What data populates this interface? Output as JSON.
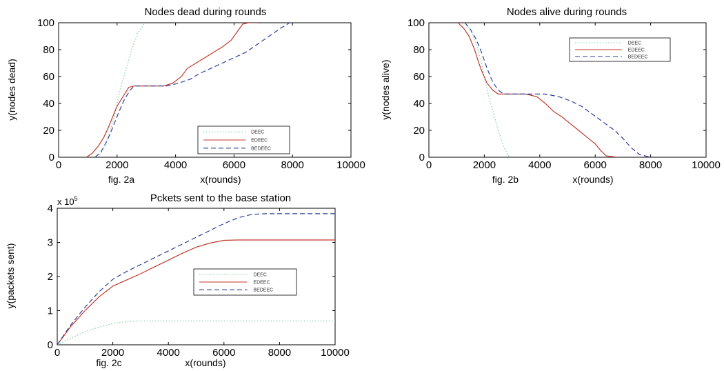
{
  "chart_data": [
    {
      "type": "line",
      "title": "Nodes dead during rounds",
      "ylabel": "y(nodes dead)",
      "fig_label": "fig. 2a",
      "xlabel": "x(rounds)",
      "xlim": [
        0,
        10000
      ],
      "ylim": [
        0,
        100
      ],
      "xticks": [
        0,
        2000,
        4000,
        6000,
        8000,
        10000
      ],
      "yticks": [
        0,
        20,
        40,
        60,
        80,
        100
      ],
      "tick_labels_x": [
        "0",
        "2000",
        "4000",
        "6000",
        "8000",
        "10000"
      ],
      "tick_labels_y": [
        "0",
        "20",
        "40",
        "60",
        "80",
        "100"
      ],
      "legend_placement": "lower-right",
      "series": [
        {
          "name": "DEEC",
          "color": "#8fd4a8",
          "style": "dotted",
          "x": [
            1350,
            1500,
            1700,
            1900,
            2100,
            2300,
            2500,
            2700,
            2950
          ],
          "y": [
            0,
            5,
            15,
            30,
            50,
            65,
            80,
            92,
            100
          ]
        },
        {
          "name": "EDEEC",
          "color": "#c0392b",
          "style": "solid",
          "x": [
            950,
            1150,
            1350,
            1550,
            1700,
            1850,
            2000,
            2200,
            2400,
            2600,
            3000,
            3600,
            3900,
            4200,
            4400,
            4700,
            5000,
            5300,
            5600,
            5900,
            6100,
            6300,
            6500,
            6800
          ],
          "y": [
            0,
            3,
            8,
            15,
            22,
            30,
            38,
            45,
            52,
            53,
            53,
            53,
            55,
            60,
            66,
            70,
            74,
            78,
            82,
            87,
            93,
            99,
            100,
            100
          ]
        },
        {
          "name": "BEDEEC",
          "color": "#2c3e9e",
          "style": "dashed",
          "x": [
            1250,
            1450,
            1650,
            1850,
            2050,
            2250,
            2450,
            2600,
            3000,
            3700,
            4100,
            4500,
            4800,
            5200,
            5600,
            6000,
            6400,
            6800,
            7200,
            7600,
            7900,
            8050
          ],
          "y": [
            0,
            4,
            12,
            22,
            33,
            43,
            50,
            53,
            53,
            53,
            55,
            58,
            62,
            66,
            70,
            74,
            78,
            84,
            90,
            96,
            100,
            100
          ]
        }
      ]
    },
    {
      "type": "line",
      "title": "Nodes alive during rounds",
      "ylabel": "y(nodes alive)",
      "fig_label": "fig. 2b",
      "xlabel": "x(rounds)",
      "xlim": [
        0,
        10000
      ],
      "ylim": [
        0,
        100
      ],
      "xticks": [
        0,
        2000,
        4000,
        6000,
        8000,
        10000
      ],
      "yticks": [
        0,
        20,
        40,
        60,
        80,
        100
      ],
      "tick_labels_x": [
        "0",
        "2000",
        "4000",
        "6000",
        "8000",
        "10000"
      ],
      "tick_labels_y": [
        "0",
        "20",
        "40",
        "60",
        "80",
        "100"
      ],
      "legend_placement": "top-right",
      "series": [
        {
          "name": "DEEC",
          "color": "#8fd4a8",
          "style": "dotted",
          "x": [
            1300,
            1500,
            1700,
            1900,
            2100,
            2300,
            2500,
            2700,
            2900
          ],
          "y": [
            100,
            95,
            85,
            70,
            50,
            35,
            20,
            8,
            0
          ]
        },
        {
          "name": "EDEEC",
          "color": "#c0392b",
          "style": "solid",
          "x": [
            1050,
            1250,
            1450,
            1650,
            1800,
            1950,
            2100,
            2300,
            2500,
            3000,
            3500,
            3900,
            4200,
            4500,
            4800,
            5100,
            5400,
            5700,
            6000,
            6200,
            6400,
            6800
          ],
          "y": [
            100,
            96,
            90,
            80,
            70,
            62,
            55,
            50,
            47,
            47,
            47,
            45,
            40,
            34,
            30,
            25,
            20,
            15,
            10,
            5,
            1,
            0
          ]
        },
        {
          "name": "BEDEEC",
          "color": "#2c3e9e",
          "style": "dashed",
          "x": [
            1300,
            1500,
            1700,
            1900,
            2100,
            2300,
            2500,
            2700,
            3000,
            3600,
            4200,
            4700,
            5100,
            5500,
            5900,
            6300,
            6700,
            7000,
            7300,
            7600,
            8000
          ],
          "y": [
            100,
            95,
            88,
            78,
            66,
            56,
            50,
            47,
            47,
            47,
            47,
            45,
            42,
            38,
            32,
            26,
            20,
            14,
            7,
            2,
            0
          ]
        }
      ]
    },
    {
      "type": "line",
      "title": "Pckets sent to the base station",
      "scale_prefix": "x 10",
      "scale_exponent": "5",
      "ylabel": "y(packets sent)",
      "fig_label": "fig. 2c",
      "xlabel": "x(rounds)",
      "xlim": [
        0,
        10000
      ],
      "ylim": [
        0,
        4
      ],
      "xticks": [
        0,
        2000,
        4000,
        6000,
        8000,
        10000
      ],
      "yticks": [
        0,
        1,
        2,
        3,
        4
      ],
      "tick_labels_x": [
        "0",
        "2000",
        "4000",
        "6000",
        "8000",
        "10000"
      ],
      "tick_labels_y": [
        "0",
        "1",
        "2",
        "3",
        "4"
      ],
      "legend_placement": "center-right",
      "series": [
        {
          "name": "DEEC",
          "color": "#8fd4a8",
          "style": "dotted",
          "x": [
            0,
            500,
            1000,
            1500,
            2000,
            2500,
            2900,
            4000,
            6000,
            8000,
            10000
          ],
          "y": [
            0,
            0.2,
            0.38,
            0.52,
            0.62,
            0.68,
            0.7,
            0.7,
            0.7,
            0.7,
            0.7
          ]
        },
        {
          "name": "EDEEC",
          "color": "#c0392b",
          "style": "solid",
          "x": [
            0,
            500,
            1000,
            1500,
            2000,
            2500,
            3000,
            3500,
            4000,
            4500,
            5000,
            5500,
            6000,
            6500,
            7000,
            8000,
            10000
          ],
          "y": [
            0,
            0.55,
            1.0,
            1.4,
            1.72,
            1.9,
            2.08,
            2.28,
            2.48,
            2.68,
            2.86,
            2.98,
            3.06,
            3.07,
            3.07,
            3.07,
            3.07
          ]
        },
        {
          "name": "BEDEEC",
          "color": "#2c3e9e",
          "style": "dashed",
          "x": [
            0,
            500,
            1000,
            1500,
            2000,
            2500,
            3000,
            3500,
            4000,
            4500,
            5000,
            5500,
            6000,
            6500,
            7000,
            7500,
            8000,
            10000
          ],
          "y": [
            0,
            0.6,
            1.1,
            1.55,
            1.92,
            2.15,
            2.35,
            2.55,
            2.75,
            2.95,
            3.15,
            3.35,
            3.55,
            3.72,
            3.82,
            3.84,
            3.84,
            3.84
          ]
        }
      ]
    }
  ]
}
